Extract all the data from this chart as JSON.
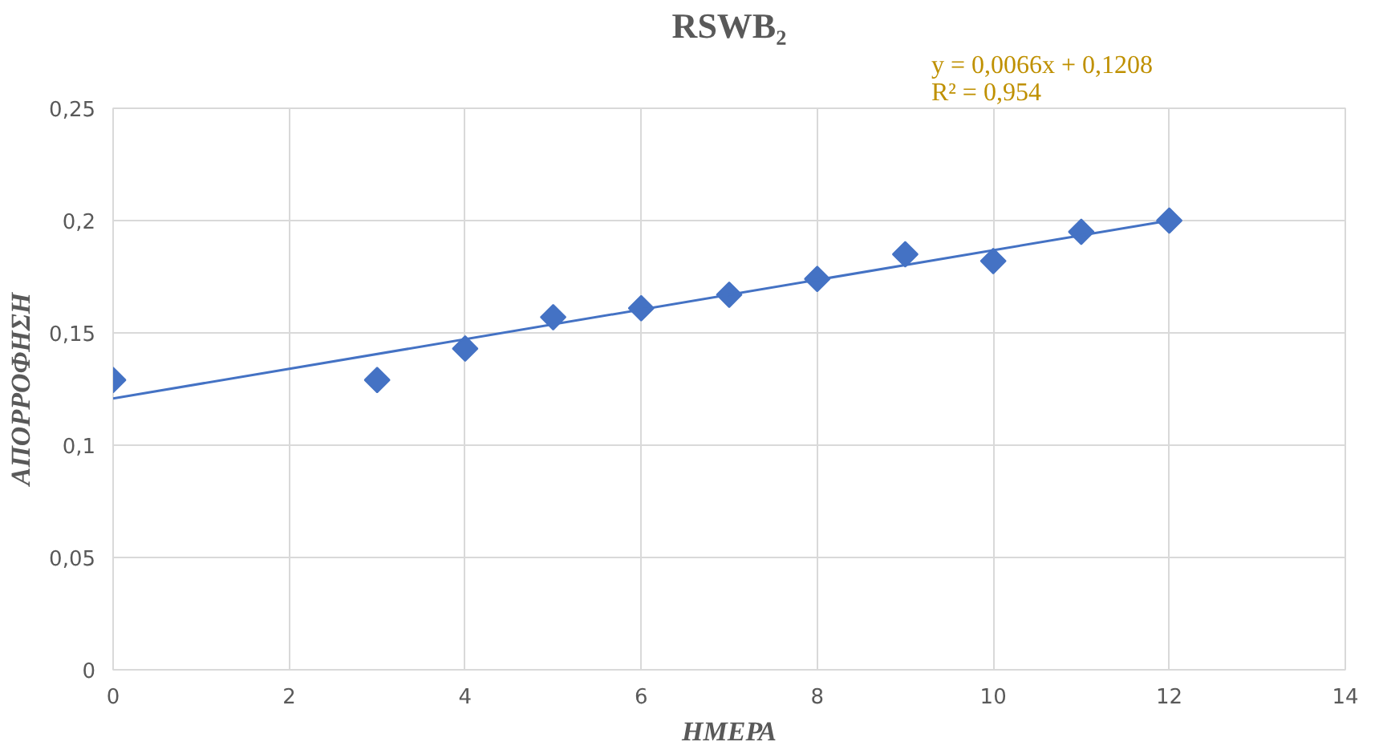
{
  "chart_data": {
    "type": "scatter",
    "title": "RSWB₂",
    "xlabel": "ΗΜΕΡΑ",
    "ylabel": "ΑΠΟΡΡΟΦΗΣΗ",
    "annotations": [
      "y = 0,0066x + 0,1208",
      "R² = 0,954"
    ],
    "series": [
      {
        "color": "#4472c4",
        "x": [
          0,
          3,
          4,
          5,
          6,
          7,
          8,
          9,
          10,
          11,
          12
        ],
        "values": [
          0.129,
          0.129,
          0.143,
          0.157,
          0.161,
          0.167,
          0.174,
          0.185,
          0.182,
          0.195,
          0.2
        ],
        "marker": "diamond"
      },
      {
        "type": "line",
        "color": "#4472c4",
        "x": [
          0,
          12
        ],
        "values": [
          0.1208,
          0.2
        ],
        "line_style": "solid"
      }
    ],
    "xlim": [
      0,
      14
    ],
    "xticks": [
      0,
      2,
      4,
      6,
      8,
      10,
      12,
      14
    ],
    "ylim": [
      0,
      0.25
    ],
    "yticks": [
      {
        "value": 0,
        "label": "0"
      },
      {
        "value": 0.05,
        "label": "0,05"
      },
      {
        "value": 0.1,
        "label": "0,1"
      },
      {
        "value": 0.15,
        "label": "0,15"
      },
      {
        "value": 0.2,
        "label": "0,2"
      },
      {
        "value": 0.25,
        "label": "0,25"
      }
    ],
    "grid": true
  }
}
